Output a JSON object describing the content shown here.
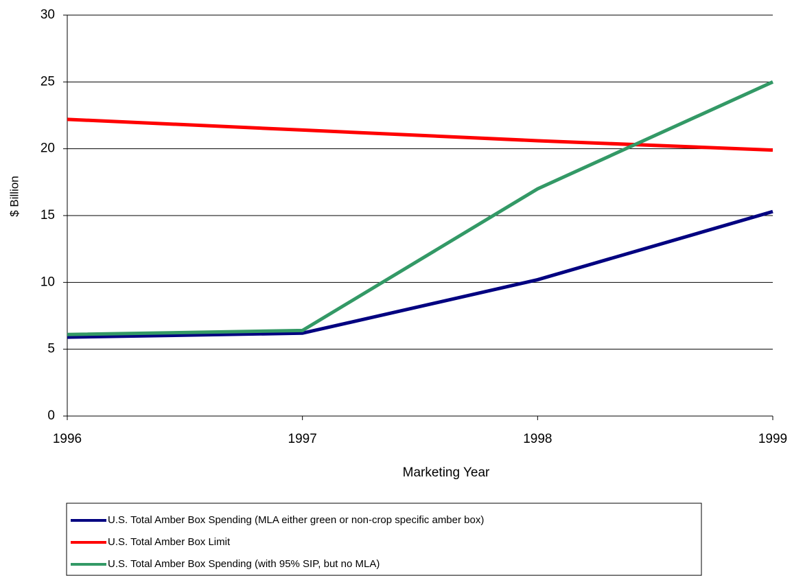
{
  "chart_data": {
    "type": "line",
    "x_label": "Marketing Year",
    "y_label": "$ Billion",
    "x": [
      1996,
      1997,
      1998,
      1999
    ],
    "xlim": [
      1996,
      1999
    ],
    "xticks": [
      1996,
      1997,
      1998,
      1999
    ],
    "ylim": [
      0,
      30
    ],
    "yticks": [
      0,
      5,
      10,
      15,
      20,
      25,
      30
    ],
    "grid": true,
    "legend": "bottom",
    "series": [
      {
        "name": "U.S. Total Amber Box Spending (MLA either green or non-crop specific amber box)",
        "color": "#000080",
        "values": [
          5.9,
          6.2,
          10.2,
          15.3
        ]
      },
      {
        "name": "U.S. Total Amber Box Limit",
        "color": "#ff0000",
        "values": [
          22.2,
          21.4,
          20.6,
          19.9
        ]
      },
      {
        "name": "U.S. Total Amber Box Spending (with 95% SIP, but no MLA)",
        "color": "#339966",
        "values": [
          6.1,
          6.4,
          17.0,
          25.0
        ]
      }
    ]
  }
}
